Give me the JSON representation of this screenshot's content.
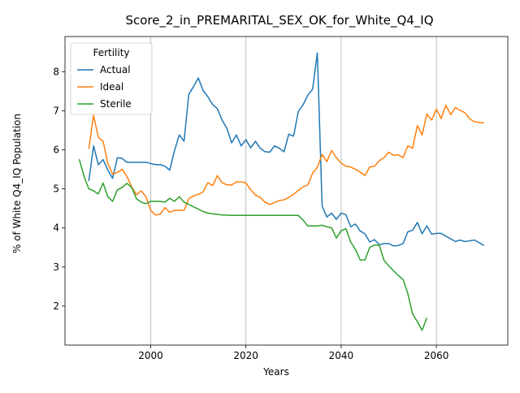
{
  "chart_data": {
    "type": "line",
    "title": "Score_2_in_PREMARITAL_SEX_OK_for_White_Q4_IQ",
    "xlabel": "Years",
    "ylabel": "% of White Q4_IQ Population",
    "xlim": [
      1982,
      2075
    ],
    "ylim": [
      1.0,
      8.9
    ],
    "x_ticks": [
      2000,
      2020,
      2040,
      2060
    ],
    "y_ticks": [
      2,
      3,
      4,
      5,
      6,
      7,
      8
    ],
    "grid": "vertical-major",
    "legend": {
      "title": "Fertility",
      "position": "top-left"
    },
    "series": [
      {
        "name": "Actual",
        "color": "#1f77b4",
        "points": [
          [
            1987,
            5.2
          ],
          [
            1988,
            6.1
          ],
          [
            1989,
            5.62
          ],
          [
            1990,
            5.75
          ],
          [
            1991,
            5.48
          ],
          [
            1992,
            5.27
          ],
          [
            1993,
            5.8
          ],
          [
            1994,
            5.78
          ],
          [
            1995,
            5.68
          ],
          [
            1996,
            5.68
          ],
          [
            1997,
            5.68
          ],
          [
            1998,
            5.68
          ],
          [
            1999,
            5.68
          ],
          [
            2000,
            5.65
          ],
          [
            2001,
            5.62
          ],
          [
            2002,
            5.62
          ],
          [
            2003,
            5.58
          ],
          [
            2004,
            5.48
          ],
          [
            2005,
            5.98
          ],
          [
            2006,
            6.38
          ],
          [
            2007,
            6.22
          ],
          [
            2008,
            7.42
          ],
          [
            2009,
            7.62
          ],
          [
            2010,
            7.84
          ],
          [
            2011,
            7.52
          ],
          [
            2012,
            7.36
          ],
          [
            2013,
            7.16
          ],
          [
            2014,
            7.05
          ],
          [
            2015,
            6.76
          ],
          [
            2016,
            6.55
          ],
          [
            2017,
            6.18
          ],
          [
            2018,
            6.38
          ],
          [
            2019,
            6.1
          ],
          [
            2020,
            6.26
          ],
          [
            2021,
            6.05
          ],
          [
            2022,
            6.22
          ],
          [
            2023,
            6.04
          ],
          [
            2024,
            5.95
          ],
          [
            2025,
            5.94
          ],
          [
            2026,
            6.1
          ],
          [
            2027,
            6.04
          ],
          [
            2028,
            5.95
          ],
          [
            2029,
            6.4
          ],
          [
            2030,
            6.35
          ],
          [
            2031,
            6.98
          ],
          [
            2032,
            7.15
          ],
          [
            2033,
            7.4
          ],
          [
            2034,
            7.55
          ],
          [
            2035,
            8.48
          ],
          [
            2036,
            4.56
          ],
          [
            2037,
            4.28
          ],
          [
            2038,
            4.38
          ],
          [
            2039,
            4.22
          ],
          [
            2040,
            4.38
          ],
          [
            2041,
            4.34
          ],
          [
            2042,
            4.03
          ],
          [
            2043,
            4.1
          ],
          [
            2044,
            3.92
          ],
          [
            2045,
            3.85
          ],
          [
            2046,
            3.64
          ],
          [
            2047,
            3.7
          ],
          [
            2048,
            3.57
          ],
          [
            2049,
            3.6
          ],
          [
            2050,
            3.6
          ],
          [
            2051,
            3.54
          ],
          [
            2052,
            3.55
          ],
          [
            2053,
            3.6
          ],
          [
            2054,
            3.9
          ],
          [
            2055,
            3.94
          ],
          [
            2056,
            4.14
          ],
          [
            2057,
            3.85
          ],
          [
            2058,
            4.05
          ],
          [
            2059,
            3.84
          ],
          [
            2060,
            3.86
          ],
          [
            2061,
            3.86
          ],
          [
            2062,
            3.79
          ],
          [
            2063,
            3.72
          ],
          [
            2064,
            3.65
          ],
          [
            2065,
            3.69
          ],
          [
            2066,
            3.65
          ],
          [
            2067,
            3.67
          ],
          [
            2068,
            3.69
          ],
          [
            2069,
            3.62
          ],
          [
            2070,
            3.55
          ]
        ]
      },
      {
        "name": "Ideal",
        "color": "#ff7f0e",
        "points": [
          [
            1987,
            6.02
          ],
          [
            1988,
            6.88
          ],
          [
            1989,
            6.32
          ],
          [
            1990,
            6.22
          ],
          [
            1991,
            5.65
          ],
          [
            1992,
            5.38
          ],
          [
            1993,
            5.42
          ],
          [
            1994,
            5.5
          ],
          [
            1995,
            5.32
          ],
          [
            1996,
            5.05
          ],
          [
            1997,
            4.85
          ],
          [
            1998,
            4.95
          ],
          [
            1999,
            4.8
          ],
          [
            2000,
            4.45
          ],
          [
            2001,
            4.33
          ],
          [
            2002,
            4.35
          ],
          [
            2003,
            4.52
          ],
          [
            2004,
            4.4
          ],
          [
            2005,
            4.45
          ],
          [
            2006,
            4.45
          ],
          [
            2007,
            4.45
          ],
          [
            2008,
            4.75
          ],
          [
            2009,
            4.82
          ],
          [
            2010,
            4.86
          ],
          [
            2011,
            4.92
          ],
          [
            2012,
            5.16
          ],
          [
            2013,
            5.08
          ],
          [
            2014,
            5.34
          ],
          [
            2015,
            5.16
          ],
          [
            2016,
            5.1
          ],
          [
            2017,
            5.1
          ],
          [
            2018,
            5.18
          ],
          [
            2019,
            5.18
          ],
          [
            2020,
            5.15
          ],
          [
            2021,
            4.98
          ],
          [
            2022,
            4.84
          ],
          [
            2023,
            4.78
          ],
          [
            2024,
            4.66
          ],
          [
            2025,
            4.6
          ],
          [
            2026,
            4.65
          ],
          [
            2027,
            4.7
          ],
          [
            2028,
            4.72
          ],
          [
            2029,
            4.78
          ],
          [
            2030,
            4.86
          ],
          [
            2031,
            4.96
          ],
          [
            2032,
            5.05
          ],
          [
            2033,
            5.1
          ],
          [
            2034,
            5.4
          ],
          [
            2035,
            5.55
          ],
          [
            2036,
            5.88
          ],
          [
            2037,
            5.7
          ],
          [
            2038,
            5.98
          ],
          [
            2039,
            5.8
          ],
          [
            2040,
            5.66
          ],
          [
            2041,
            5.58
          ],
          [
            2042,
            5.56
          ],
          [
            2043,
            5.5
          ],
          [
            2044,
            5.43
          ],
          [
            2045,
            5.34
          ],
          [
            2046,
            5.56
          ],
          [
            2047,
            5.58
          ],
          [
            2048,
            5.72
          ],
          [
            2049,
            5.8
          ],
          [
            2050,
            5.94
          ],
          [
            2051,
            5.86
          ],
          [
            2052,
            5.87
          ],
          [
            2053,
            5.8
          ],
          [
            2054,
            6.1
          ],
          [
            2055,
            6.04
          ],
          [
            2056,
            6.62
          ],
          [
            2057,
            6.38
          ],
          [
            2058,
            6.92
          ],
          [
            2059,
            6.76
          ],
          [
            2060,
            7.04
          ],
          [
            2061,
            6.8
          ],
          [
            2062,
            7.14
          ],
          [
            2063,
            6.9
          ],
          [
            2064,
            7.08
          ],
          [
            2065,
            7.01
          ],
          [
            2066,
            6.95
          ],
          [
            2067,
            6.79
          ],
          [
            2068,
            6.72
          ],
          [
            2069,
            6.7
          ],
          [
            2070,
            6.69
          ]
        ]
      },
      {
        "name": "Sterile",
        "color": "#2ca02c",
        "points": [
          [
            1985,
            5.76
          ],
          [
            1986,
            5.32
          ],
          [
            1987,
            5.0
          ],
          [
            1988,
            4.95
          ],
          [
            1989,
            4.87
          ],
          [
            1990,
            5.15
          ],
          [
            1991,
            4.8
          ],
          [
            1992,
            4.68
          ],
          [
            1993,
            4.97
          ],
          [
            1994,
            5.04
          ],
          [
            1995,
            5.14
          ],
          [
            1996,
            5.04
          ],
          [
            1997,
            4.75
          ],
          [
            1998,
            4.66
          ],
          [
            1999,
            4.62
          ],
          [
            2000,
            4.68
          ],
          [
            2001,
            4.68
          ],
          [
            2002,
            4.68
          ],
          [
            2003,
            4.66
          ],
          [
            2004,
            4.76
          ],
          [
            2005,
            4.68
          ],
          [
            2006,
            4.8
          ],
          [
            2007,
            4.66
          ],
          [
            2008,
            4.6
          ],
          [
            2009,
            4.54
          ],
          [
            2010,
            4.48
          ],
          [
            2011,
            4.42
          ],
          [
            2012,
            4.38
          ],
          [
            2013,
            4.36
          ],
          [
            2014,
            4.35
          ],
          [
            2015,
            4.33
          ],
          [
            2016,
            4.33
          ],
          [
            2017,
            4.32
          ],
          [
            2018,
            4.32
          ],
          [
            2019,
            4.32
          ],
          [
            2020,
            4.32
          ],
          [
            2021,
            4.32
          ],
          [
            2022,
            4.32
          ],
          [
            2023,
            4.32
          ],
          [
            2024,
            4.32
          ],
          [
            2025,
            4.32
          ],
          [
            2026,
            4.32
          ],
          [
            2027,
            4.32
          ],
          [
            2028,
            4.32
          ],
          [
            2029,
            4.32
          ],
          [
            2030,
            4.32
          ],
          [
            2031,
            4.32
          ],
          [
            2032,
            4.2
          ],
          [
            2033,
            4.05
          ],
          [
            2034,
            4.05
          ],
          [
            2035,
            4.05
          ],
          [
            2036,
            4.07
          ],
          [
            2037,
            4.03
          ],
          [
            2038,
            4.0
          ],
          [
            2039,
            3.74
          ],
          [
            2040,
            3.93
          ],
          [
            2041,
            3.98
          ],
          [
            2042,
            3.64
          ],
          [
            2043,
            3.45
          ],
          [
            2044,
            3.18
          ],
          [
            2045,
            3.18
          ],
          [
            2046,
            3.5
          ],
          [
            2047,
            3.56
          ],
          [
            2048,
            3.56
          ],
          [
            2049,
            3.17
          ],
          [
            2050,
            3.03
          ],
          [
            2051,
            2.9
          ],
          [
            2052,
            2.78
          ],
          [
            2053,
            2.68
          ],
          [
            2054,
            2.32
          ],
          [
            2055,
            1.8
          ],
          [
            2056,
            1.6
          ],
          [
            2057,
            1.38
          ],
          [
            2058,
            1.7
          ]
        ]
      }
    ]
  }
}
